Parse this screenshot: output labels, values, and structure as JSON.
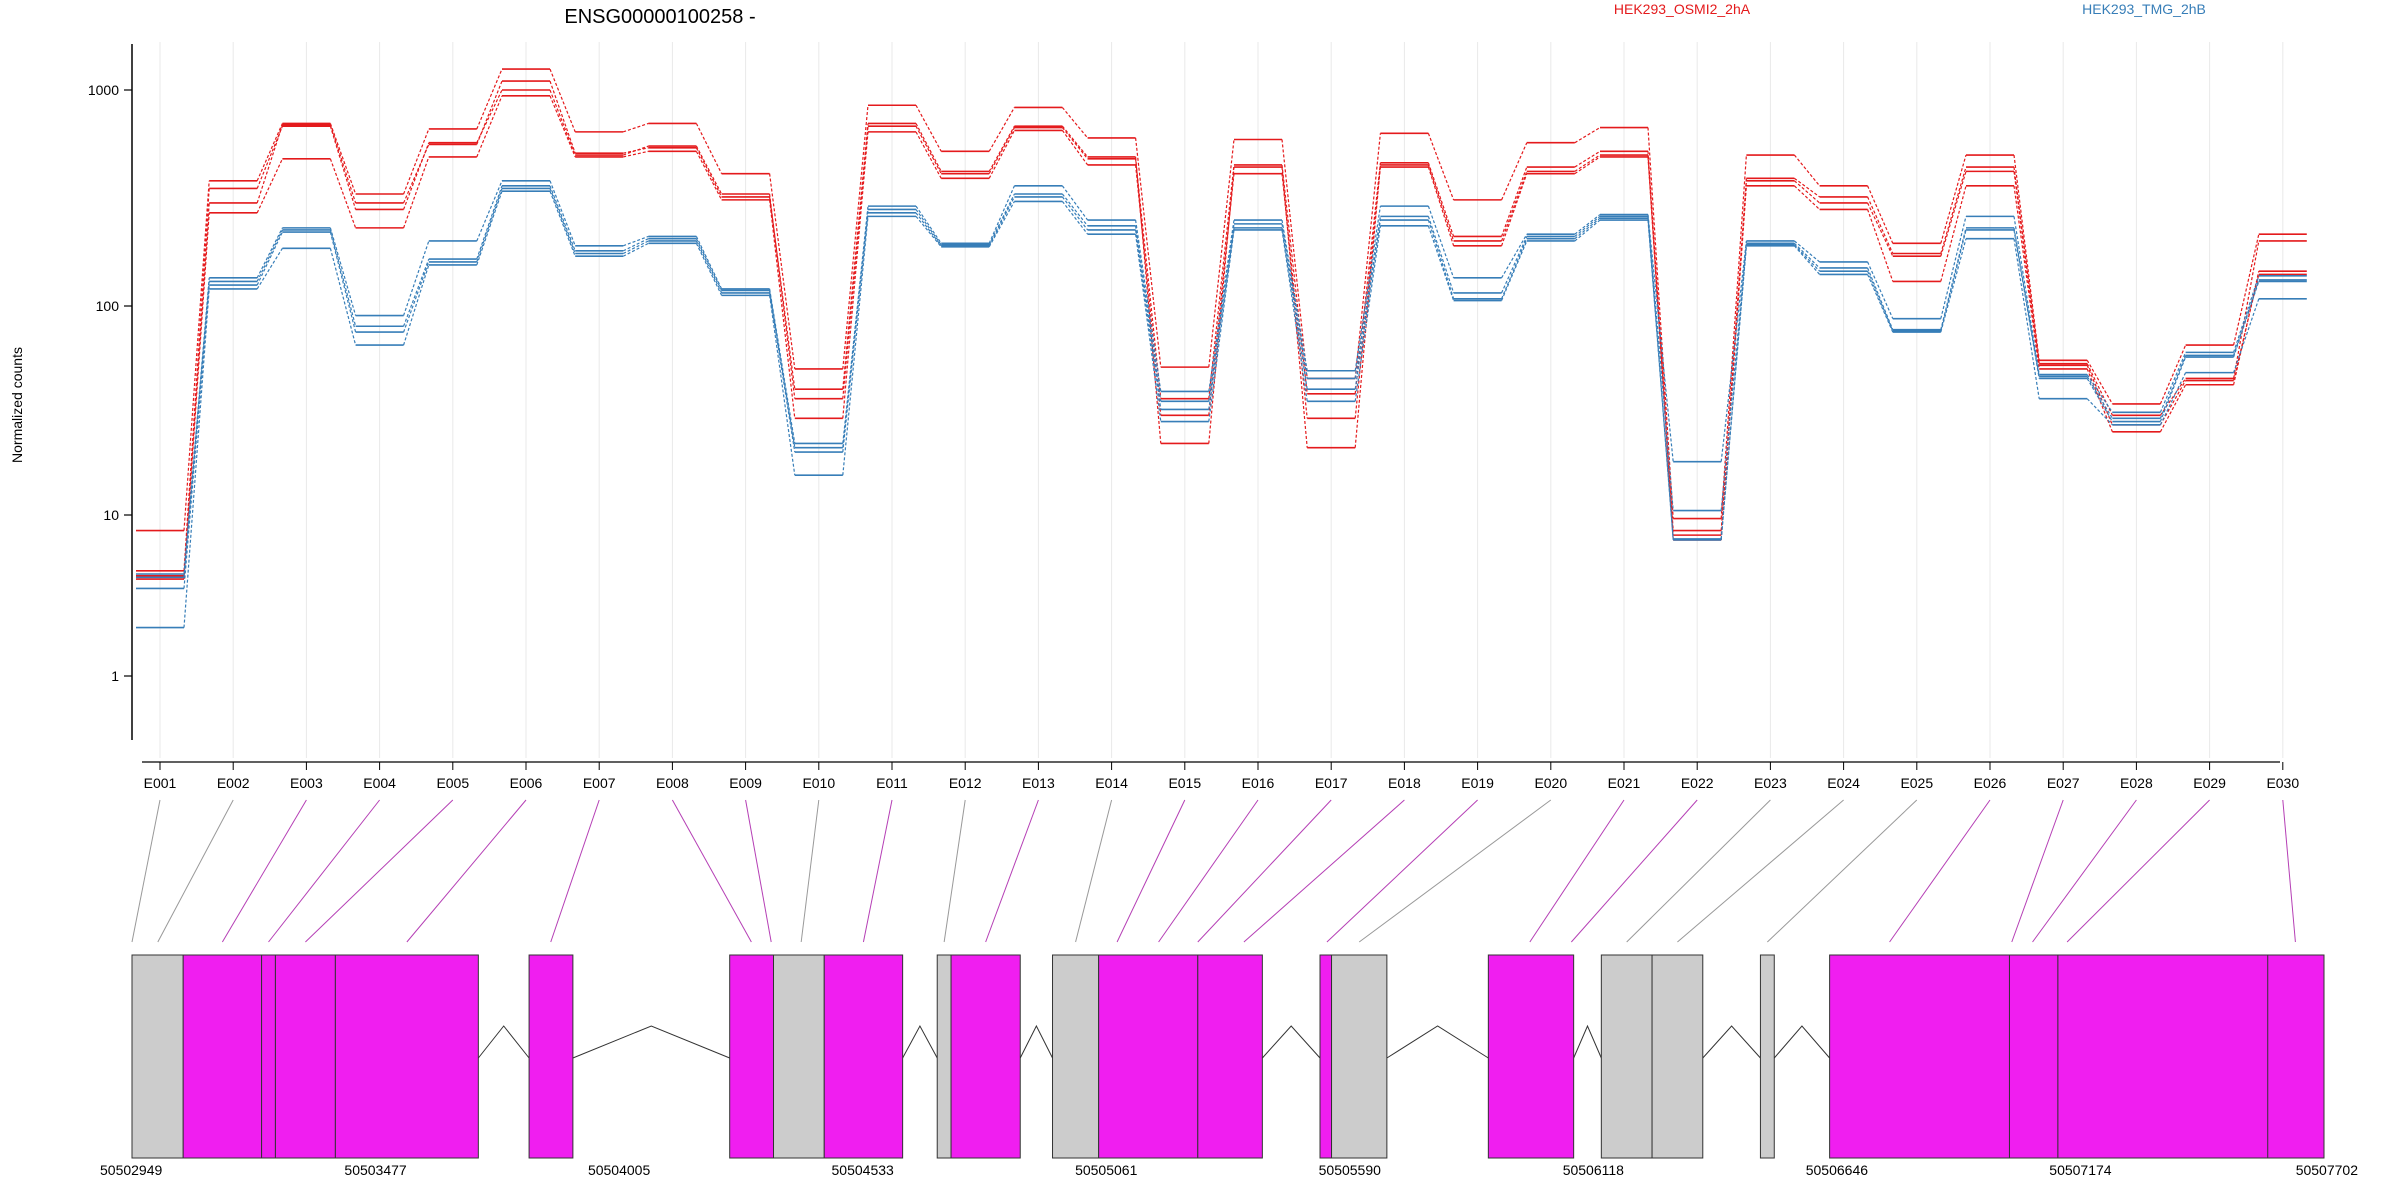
{
  "chart_data": {
    "type": "line",
    "title": "ENSG00000100258 -",
    "ylabel": "Normalized counts",
    "xlabel": "",
    "y_scale": "log",
    "ylim": [
      0.5,
      1600
    ],
    "y_ticks": [
      1,
      10,
      100,
      1000
    ],
    "grid": "vertical lines at exon centers",
    "legend": {
      "position": "top-right",
      "entries": [
        "HEK293_OSMI2_2hA",
        "HEK293_TMG_2hB"
      ]
    },
    "colors": {
      "HEK293_OSMI2_2hA": "#e41a1c",
      "HEK293_TMG_2hB": "#377eb8"
    },
    "categories": [
      "E001",
      "E002",
      "E003",
      "E004",
      "E005",
      "E006",
      "E007",
      "E008",
      "E009",
      "E010",
      "E011",
      "E012",
      "E013",
      "E014",
      "E015",
      "E016",
      "E017",
      "E018",
      "E019",
      "E020",
      "E021",
      "E022",
      "E023",
      "E024",
      "E025",
      "E026",
      "E027",
      "E028",
      "E029",
      "E030"
    ],
    "series": [
      {
        "name": "HEK293_OSMI2_2hA",
        "values": [
          8.0,
          380,
          700,
          330,
          660,
          1250,
          640,
          700,
          410,
          50,
          850,
          520,
          830,
          600,
          51,
          590,
          45,
          630,
          310,
          570,
          670,
          9.5,
          500,
          360,
          195,
          500,
          55,
          34,
          65,
          215
        ]
      },
      {
        "name": "HEK293_OSMI2_2hA",
        "values": [
          4.5,
          350,
          680,
          280,
          570,
          1000,
          500,
          550,
          330,
          36,
          680,
          410,
          670,
          480,
          36,
          450,
          38,
          460,
          210,
          440,
          520,
          8.0,
          390,
          320,
          175,
          440,
          53,
          30,
          45,
          200
        ]
      },
      {
        "name": "HEK293_OSMI2_2hA",
        "values": [
          4.0,
          270,
          480,
          230,
          490,
          940,
          490,
          520,
          310,
          29,
          640,
          390,
          650,
          450,
          30,
          410,
          29,
          440,
          190,
          410,
          490,
          7.0,
          360,
          280,
          130,
          360,
          50,
          25,
          42,
          145
        ]
      },
      {
        "name": "HEK293_OSMI2_2hA",
        "values": [
          4.2,
          300,
          690,
          300,
          560,
          1100,
          510,
          540,
          320,
          40,
          700,
          420,
          680,
          490,
          22,
          440,
          21,
          450,
          200,
          420,
          500,
          7.5,
          380,
          300,
          170,
          420,
          52,
          27,
          44,
          140
        ]
      },
      {
        "name": "HEK293_TMG_2hB",
        "values": [
          4.3,
          135,
          230,
          90,
          200,
          380,
          190,
          210,
          120,
          22,
          290,
          195,
          360,
          250,
          39,
          250,
          49,
          290,
          135,
          215,
          265,
          18,
          200,
          160,
          87,
          260,
          47,
          31,
          60,
          138
        ]
      },
      {
        "name": "HEK293_TMG_2hB",
        "values": [
          4.1,
          130,
          225,
          80,
          165,
          360,
          180,
          205,
          118,
          21,
          280,
          192,
          330,
          235,
          35,
          240,
          45,
          260,
          115,
          210,
          260,
          10.5,
          195,
          150,
          77,
          230,
          46,
          29,
          58,
          132
        ]
      },
      {
        "name": "HEK293_TMG_2hB",
        "values": [
          3.5,
          125,
          220,
          75,
          160,
          350,
          175,
          200,
          115,
          20,
          270,
          190,
          320,
          225,
          32,
          230,
          40,
          250,
          108,
          205,
          255,
          7.1,
          192,
          145,
          76,
          225,
          45,
          28,
          57,
          130
        ]
      },
      {
        "name": "HEK293_TMG_2hB",
        "values": [
          2.0,
          120,
          185,
          65,
          155,
          340,
          170,
          195,
          112,
          15.5,
          260,
          188,
          305,
          215,
          28,
          225,
          35,
          235,
          106,
          200,
          250,
          7.0,
          190,
          140,
          75,
          205,
          36,
          27,
          48,
          108
        ]
      }
    ],
    "gene_model": {
      "coordinate_labels": [
        "50502949",
        "50503477",
        "50504005",
        "50504533",
        "50505061",
        "50505590",
        "50506118",
        "50506646",
        "50507174",
        "50507702"
      ],
      "exons": [
        {
          "start": 50502949,
          "end": 50503060,
          "type": "non-coding"
        },
        {
          "start": 50503060,
          "end": 50503230,
          "type": "coding"
        },
        {
          "start": 50503230,
          "end": 50503260,
          "type": "coding"
        },
        {
          "start": 50503260,
          "end": 50503390,
          "type": "coding"
        },
        {
          "start": 50503390,
          "end": 50503700,
          "type": "coding"
        },
        {
          "start": 50503810,
          "end": 50503905,
          "type": "coding"
        },
        {
          "start": 50504245,
          "end": 50504340,
          "type": "coding"
        },
        {
          "start": 50504340,
          "end": 50504450,
          "type": "non-coding"
        },
        {
          "start": 50504450,
          "end": 50504620,
          "type": "coding"
        },
        {
          "start": 50504695,
          "end": 50504725,
          "type": "non-coding"
        },
        {
          "start": 50504725,
          "end": 50504875,
          "type": "coding"
        },
        {
          "start": 50504945,
          "end": 50505045,
          "type": "non-coding"
        },
        {
          "start": 50505045,
          "end": 50505260,
          "type": "coding"
        },
        {
          "start": 50505260,
          "end": 50505400,
          "type": "coding"
        },
        {
          "start": 50505525,
          "end": 50505550,
          "type": "coding"
        },
        {
          "start": 50505550,
          "end": 50505670,
          "type": "non-coding"
        },
        {
          "start": 50505890,
          "end": 50506075,
          "type": "coding"
        },
        {
          "start": 50506135,
          "end": 50506245,
          "type": "non-coding"
        },
        {
          "start": 50506245,
          "end": 50506355,
          "type": "non-coding"
        },
        {
          "start": 50506480,
          "end": 50506510,
          "type": "non-coding"
        },
        {
          "start": 50506630,
          "end": 50507020,
          "type": "coding"
        },
        {
          "start": 50507020,
          "end": 50507125,
          "type": "coding"
        },
        {
          "start": 50507125,
          "end": 50507590,
          "type": "coding"
        },
        {
          "start": 50507580,
          "end": 50507702,
          "type": "coding"
        }
      ],
      "exon_bin_links": [
        {
          "bin": "E001",
          "genomic": 50502949,
          "type": "non-coding"
        },
        {
          "bin": "E002",
          "genomic": 50503005,
          "type": "non-coding"
        },
        {
          "bin": "E003",
          "genomic": 50503145,
          "type": "coding"
        },
        {
          "bin": "E004",
          "genomic": 50503245,
          "type": "coding"
        },
        {
          "bin": "E005",
          "genomic": 50503325,
          "type": "coding"
        },
        {
          "bin": "E006",
          "genomic": 50503545,
          "type": "coding"
        },
        {
          "bin": "E007",
          "genomic": 50503857,
          "type": "coding"
        },
        {
          "bin": "E008",
          "genomic": 50504292,
          "type": "coding"
        },
        {
          "bin": "E009",
          "genomic": 50504335,
          "type": "coding"
        },
        {
          "bin": "E010",
          "genomic": 50504400,
          "type": "non-coding"
        },
        {
          "bin": "E011",
          "genomic": 50504535,
          "type": "coding"
        },
        {
          "bin": "E012",
          "genomic": 50504710,
          "type": "non-coding"
        },
        {
          "bin": "E013",
          "genomic": 50504800,
          "type": "coding"
        },
        {
          "bin": "E014",
          "genomic": 50504995,
          "type": "non-coding"
        },
        {
          "bin": "E015",
          "genomic": 50505085,
          "type": "coding"
        },
        {
          "bin": "E016",
          "genomic": 50505175,
          "type": "coding"
        },
        {
          "bin": "E017",
          "genomic": 50505260,
          "type": "coding"
        },
        {
          "bin": "E018",
          "genomic": 50505360,
          "type": "coding"
        },
        {
          "bin": "E019",
          "genomic": 50505540,
          "type": "coding"
        },
        {
          "bin": "E020",
          "genomic": 50505610,
          "type": "non-coding"
        },
        {
          "bin": "E021",
          "genomic": 50505980,
          "type": "coding"
        },
        {
          "bin": "E022",
          "genomic": 50506070,
          "type": "coding"
        },
        {
          "bin": "E023",
          "genomic": 50506190,
          "type": "non-coding"
        },
        {
          "bin": "E024",
          "genomic": 50506300,
          "type": "non-coding"
        },
        {
          "bin": "E025",
          "genomic": 50506495,
          "type": "non-coding"
        },
        {
          "bin": "E026",
          "genomic": 50506760,
          "type": "coding"
        },
        {
          "bin": "E027",
          "genomic": 50507025,
          "type": "coding"
        },
        {
          "bin": "E028",
          "genomic": 50507070,
          "type": "coding"
        },
        {
          "bin": "E029",
          "genomic": 50507145,
          "type": "coding"
        },
        {
          "bin": "E030",
          "genomic": 50507640,
          "type": "coding"
        }
      ],
      "colors": {
        "coding": "#f01ef0",
        "non-coding": "#cccccc"
      }
    }
  }
}
